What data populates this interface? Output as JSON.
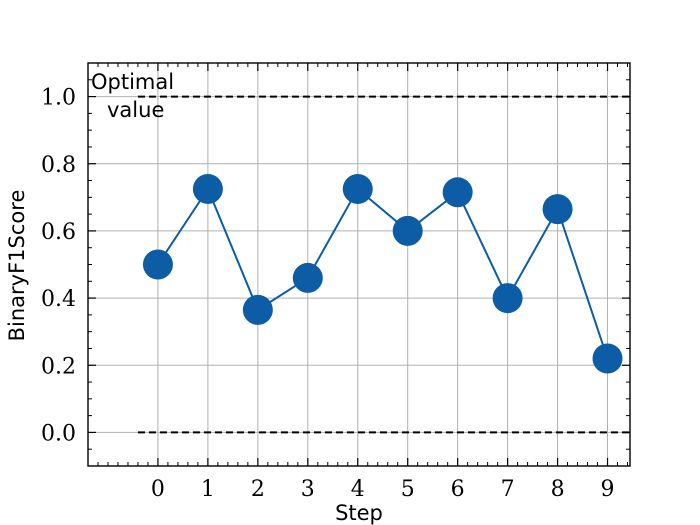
{
  "chart_data": {
    "type": "line",
    "xlabel": "Step",
    "ylabel": "BinaryF1Score",
    "x": [
      0,
      1,
      2,
      3,
      4,
      5,
      6,
      7,
      8,
      9
    ],
    "series": [
      {
        "values": [
          0.5,
          0.725,
          0.365,
          0.46,
          0.725,
          0.6,
          0.715,
          0.4,
          0.665,
          0.22
        ]
      }
    ],
    "xlim": [
      -1.4,
      9.45
    ],
    "ylim": [
      -0.1,
      1.1
    ],
    "x_ticks": [
      "0",
      "1",
      "2",
      "3",
      "4",
      "5",
      "6",
      "7",
      "8",
      "9"
    ],
    "y_ticks": [
      "0.0",
      "0.2",
      "0.4",
      "0.6",
      "0.8",
      "1.0"
    ],
    "grid": true,
    "reference_lines": [
      {
        "y": 1.0,
        "style": "dashed",
        "x_from": -0.4
      },
      {
        "y": 0.0,
        "style": "dashed",
        "x_from": -0.4
      }
    ],
    "annotation": "Optimal\nvalue",
    "colors": {
      "series": "#0C5DA5",
      "grid": "#b0b0b0",
      "reference": "#000000"
    }
  }
}
